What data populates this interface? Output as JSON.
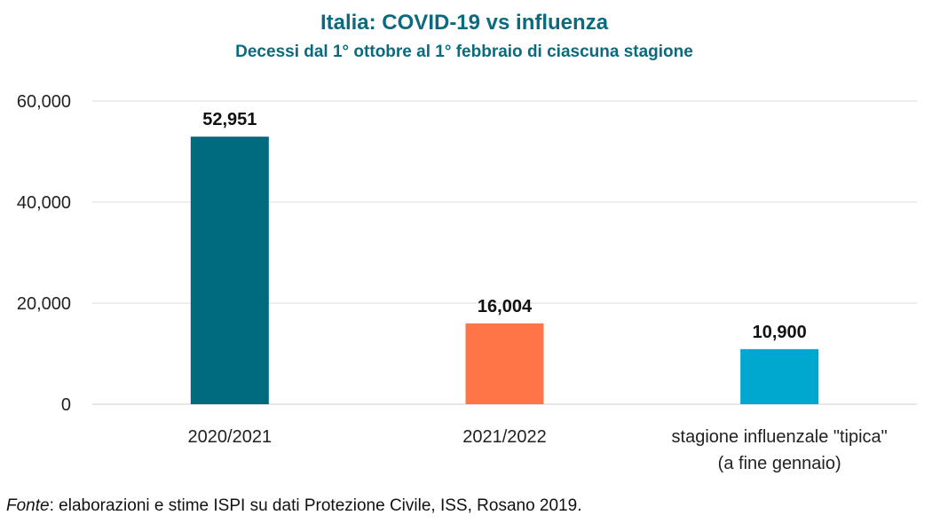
{
  "chart_data": {
    "type": "bar",
    "title": "Italia: COVID-19 vs influenza",
    "subtitle": "Decessi dal 1° ottobre al 1° febbraio di ciascuna stagione",
    "categories": [
      [
        "2020/2021"
      ],
      [
        "2021/2022"
      ],
      [
        "stagione influenzale \"tipica\"",
        "(a fine gennaio)"
      ]
    ],
    "values": [
      52951,
      16004,
      10900
    ],
    "value_labels": [
      "52,951",
      "16,004",
      "10,900"
    ],
    "colors": [
      "#006a7f",
      "#ff7548",
      "#00a8d0"
    ],
    "yticks": [
      0,
      20000,
      40000,
      60000
    ],
    "ytick_labels": [
      "0",
      "20,000",
      "40,000",
      "60,000"
    ],
    "ylim": [
      0,
      60000
    ],
    "xlabel": "",
    "ylabel": "",
    "grid": true,
    "legend": "none"
  },
  "source": {
    "prefix": "Fonte",
    "text": ": elaborazioni e stime ISPI su dati Protezione Civile, ISS, Rosano 2019."
  }
}
